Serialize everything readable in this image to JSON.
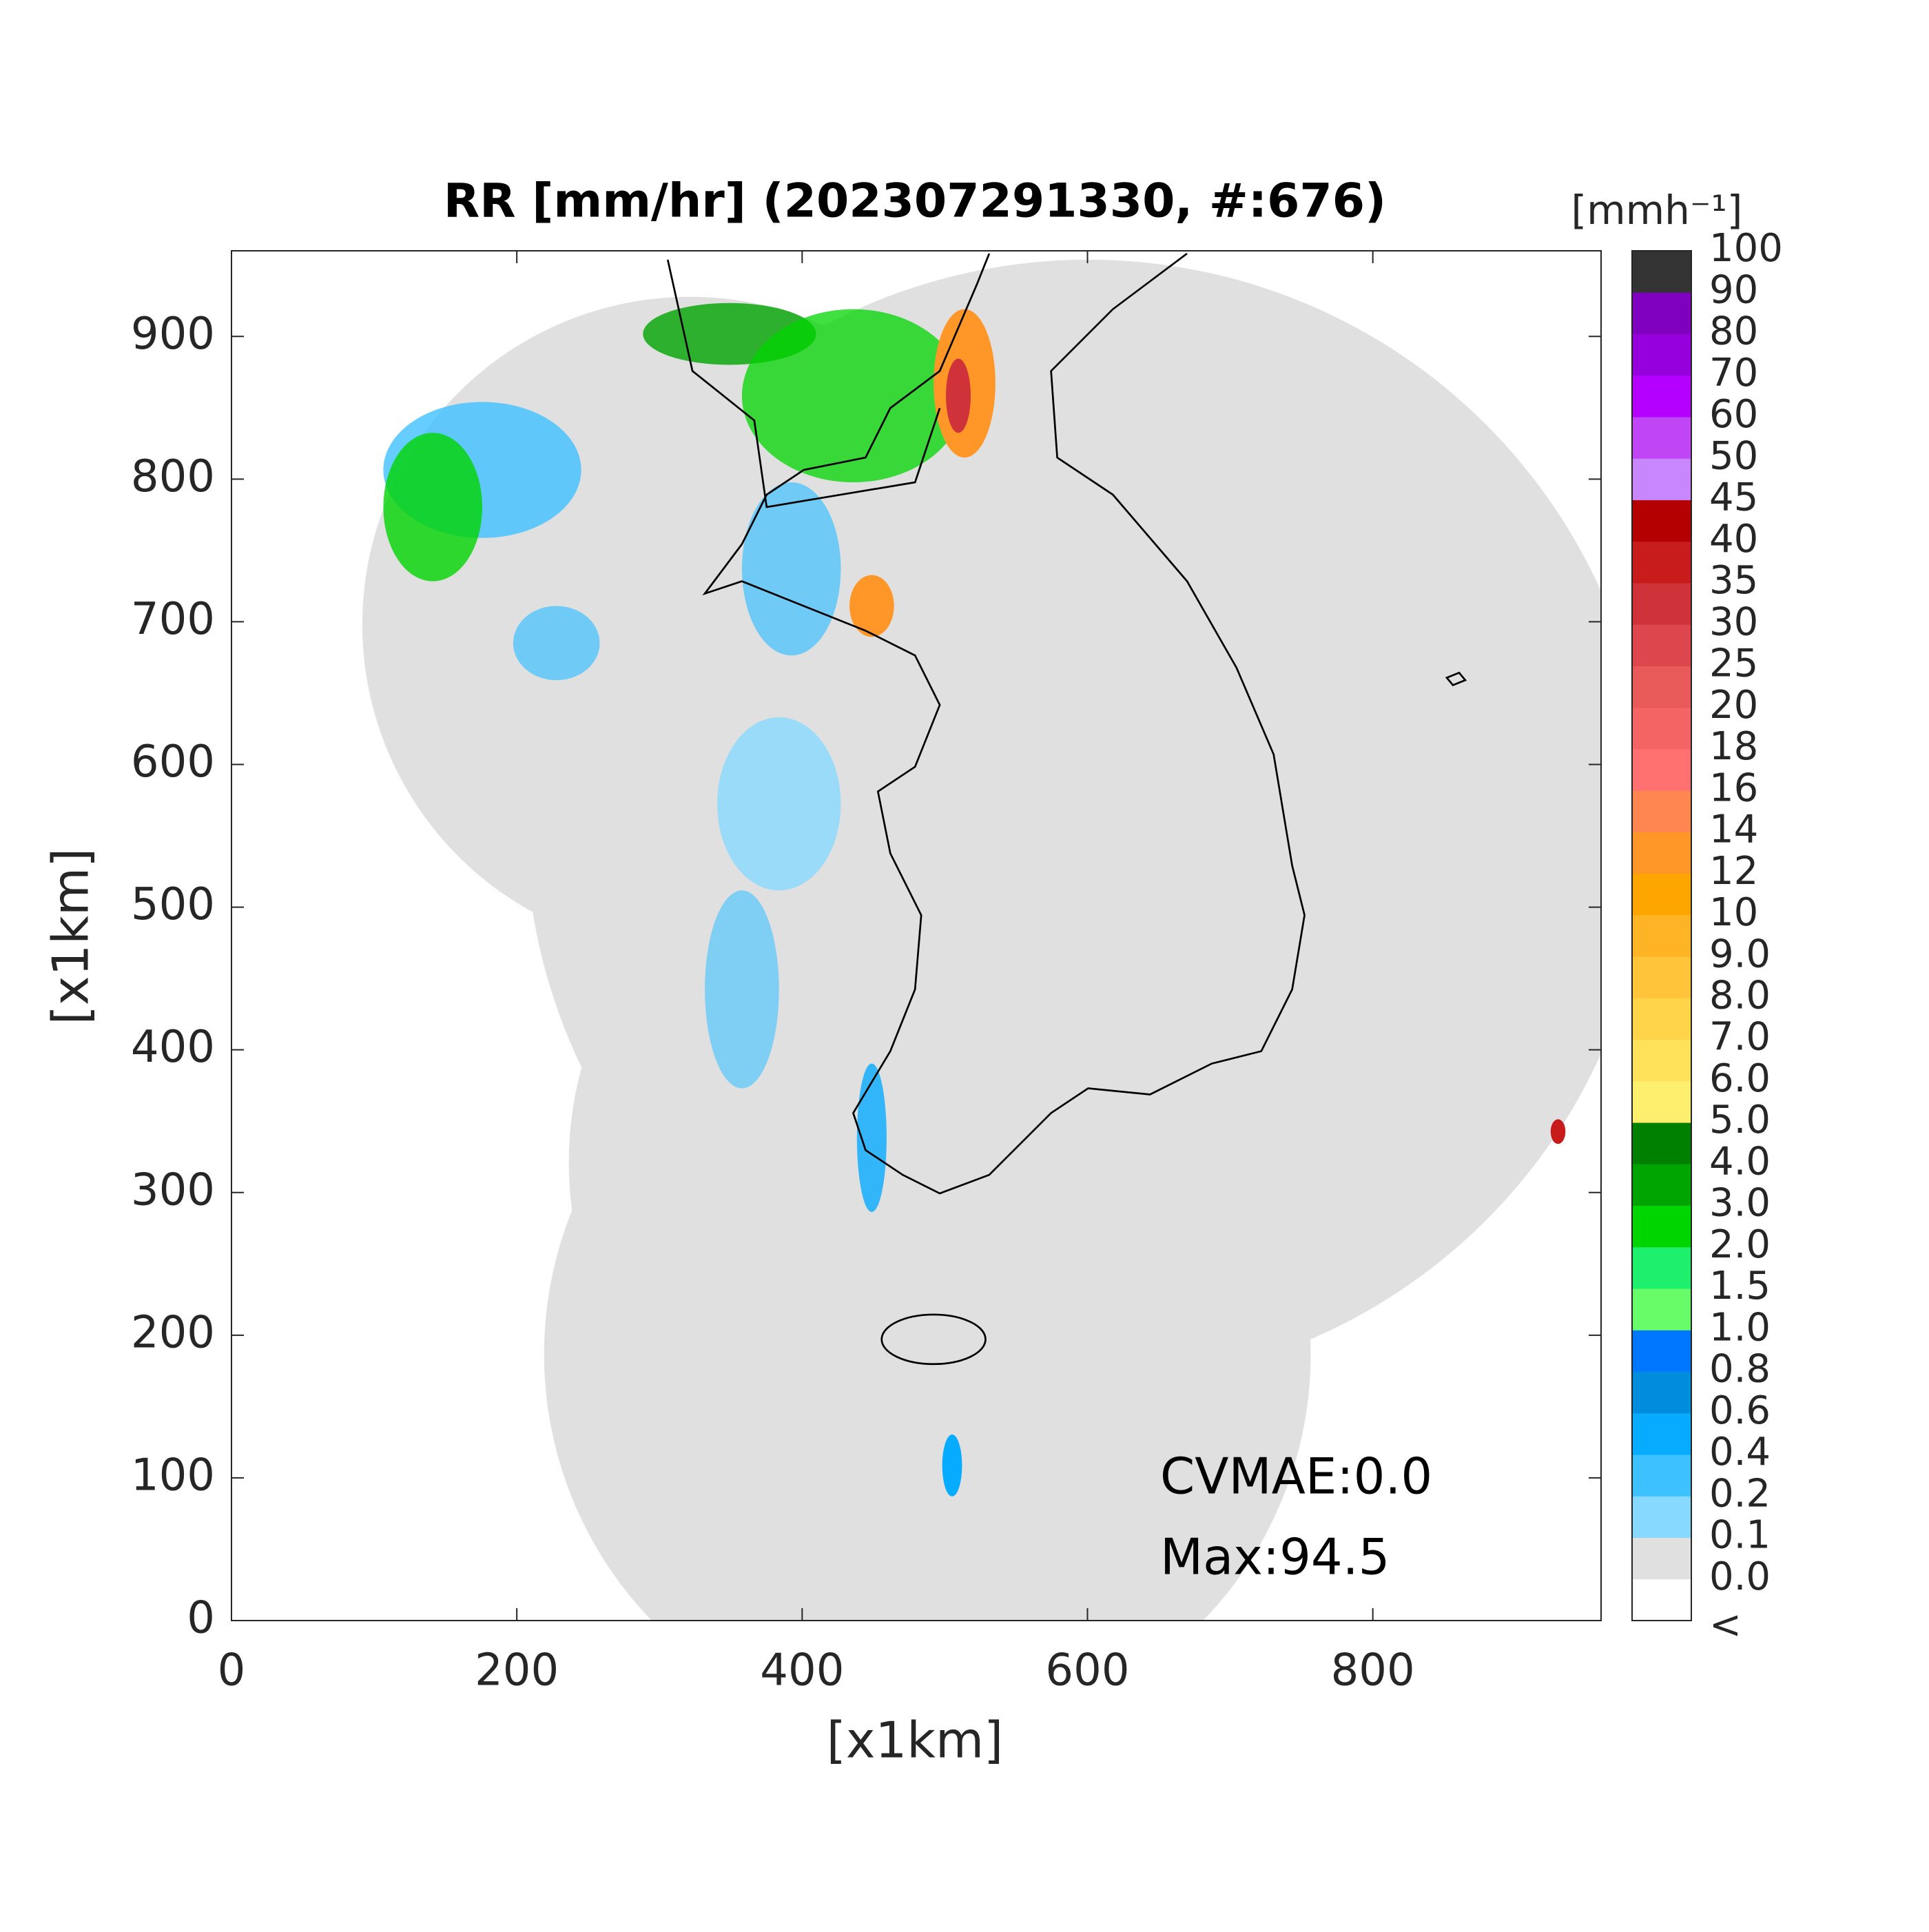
{
  "chart_data": {
    "type": "map",
    "title": "RR [mm/hr] (202307291330, #:676)",
    "xlabel": "[x1km]",
    "ylabel": "[x1km]",
    "xlim": [
      0,
      960
    ],
    "ylim": [
      0,
      960
    ],
    "xticks": [
      0,
      200,
      400,
      600,
      800
    ],
    "yticks": [
      0,
      100,
      200,
      300,
      400,
      500,
      600,
      700,
      800,
      900
    ],
    "annotations": [
      "CVMAE:0.0",
      "Max:94.5"
    ],
    "colorbar": {
      "title": "[mmh⁻¹]",
      "labels": [
        "<",
        "0.0",
        "0.1",
        "0.2",
        "0.4",
        "0.6",
        "0.8",
        "1.0",
        "1.5",
        "2.0",
        "3.0",
        "4.0",
        "5.0",
        "6.0",
        "7.0",
        "8.0",
        "9.0",
        "10",
        "12",
        "14",
        "16",
        "18",
        "20",
        "25",
        "30",
        "35",
        "40",
        "45",
        "50",
        "60",
        "70",
        "80",
        "90",
        "100"
      ],
      "colors": [
        "#ffffff",
        "#e0e0e0",
        "#87d9ff",
        "#3ec1ff",
        "#07abff",
        "#008dde",
        "#0077ff",
        "#69fc69",
        "#1ef06e",
        "#00d500",
        "#00a400",
        "#008000",
        "#ffef6e",
        "#ffe15a",
        "#ffd448",
        "#ffc43a",
        "#ffb425",
        "#ffa500",
        "#ff9628",
        "#ff8650",
        "#ff7070",
        "#f46464",
        "#e85a5a",
        "#dc464c",
        "#d0323a",
        "#c81c1c",
        "#b40000",
        "#c887ff",
        "#c046f5",
        "#b400ff",
        "#9600dc",
        "#8000c0",
        "#333333"
      ]
    }
  }
}
